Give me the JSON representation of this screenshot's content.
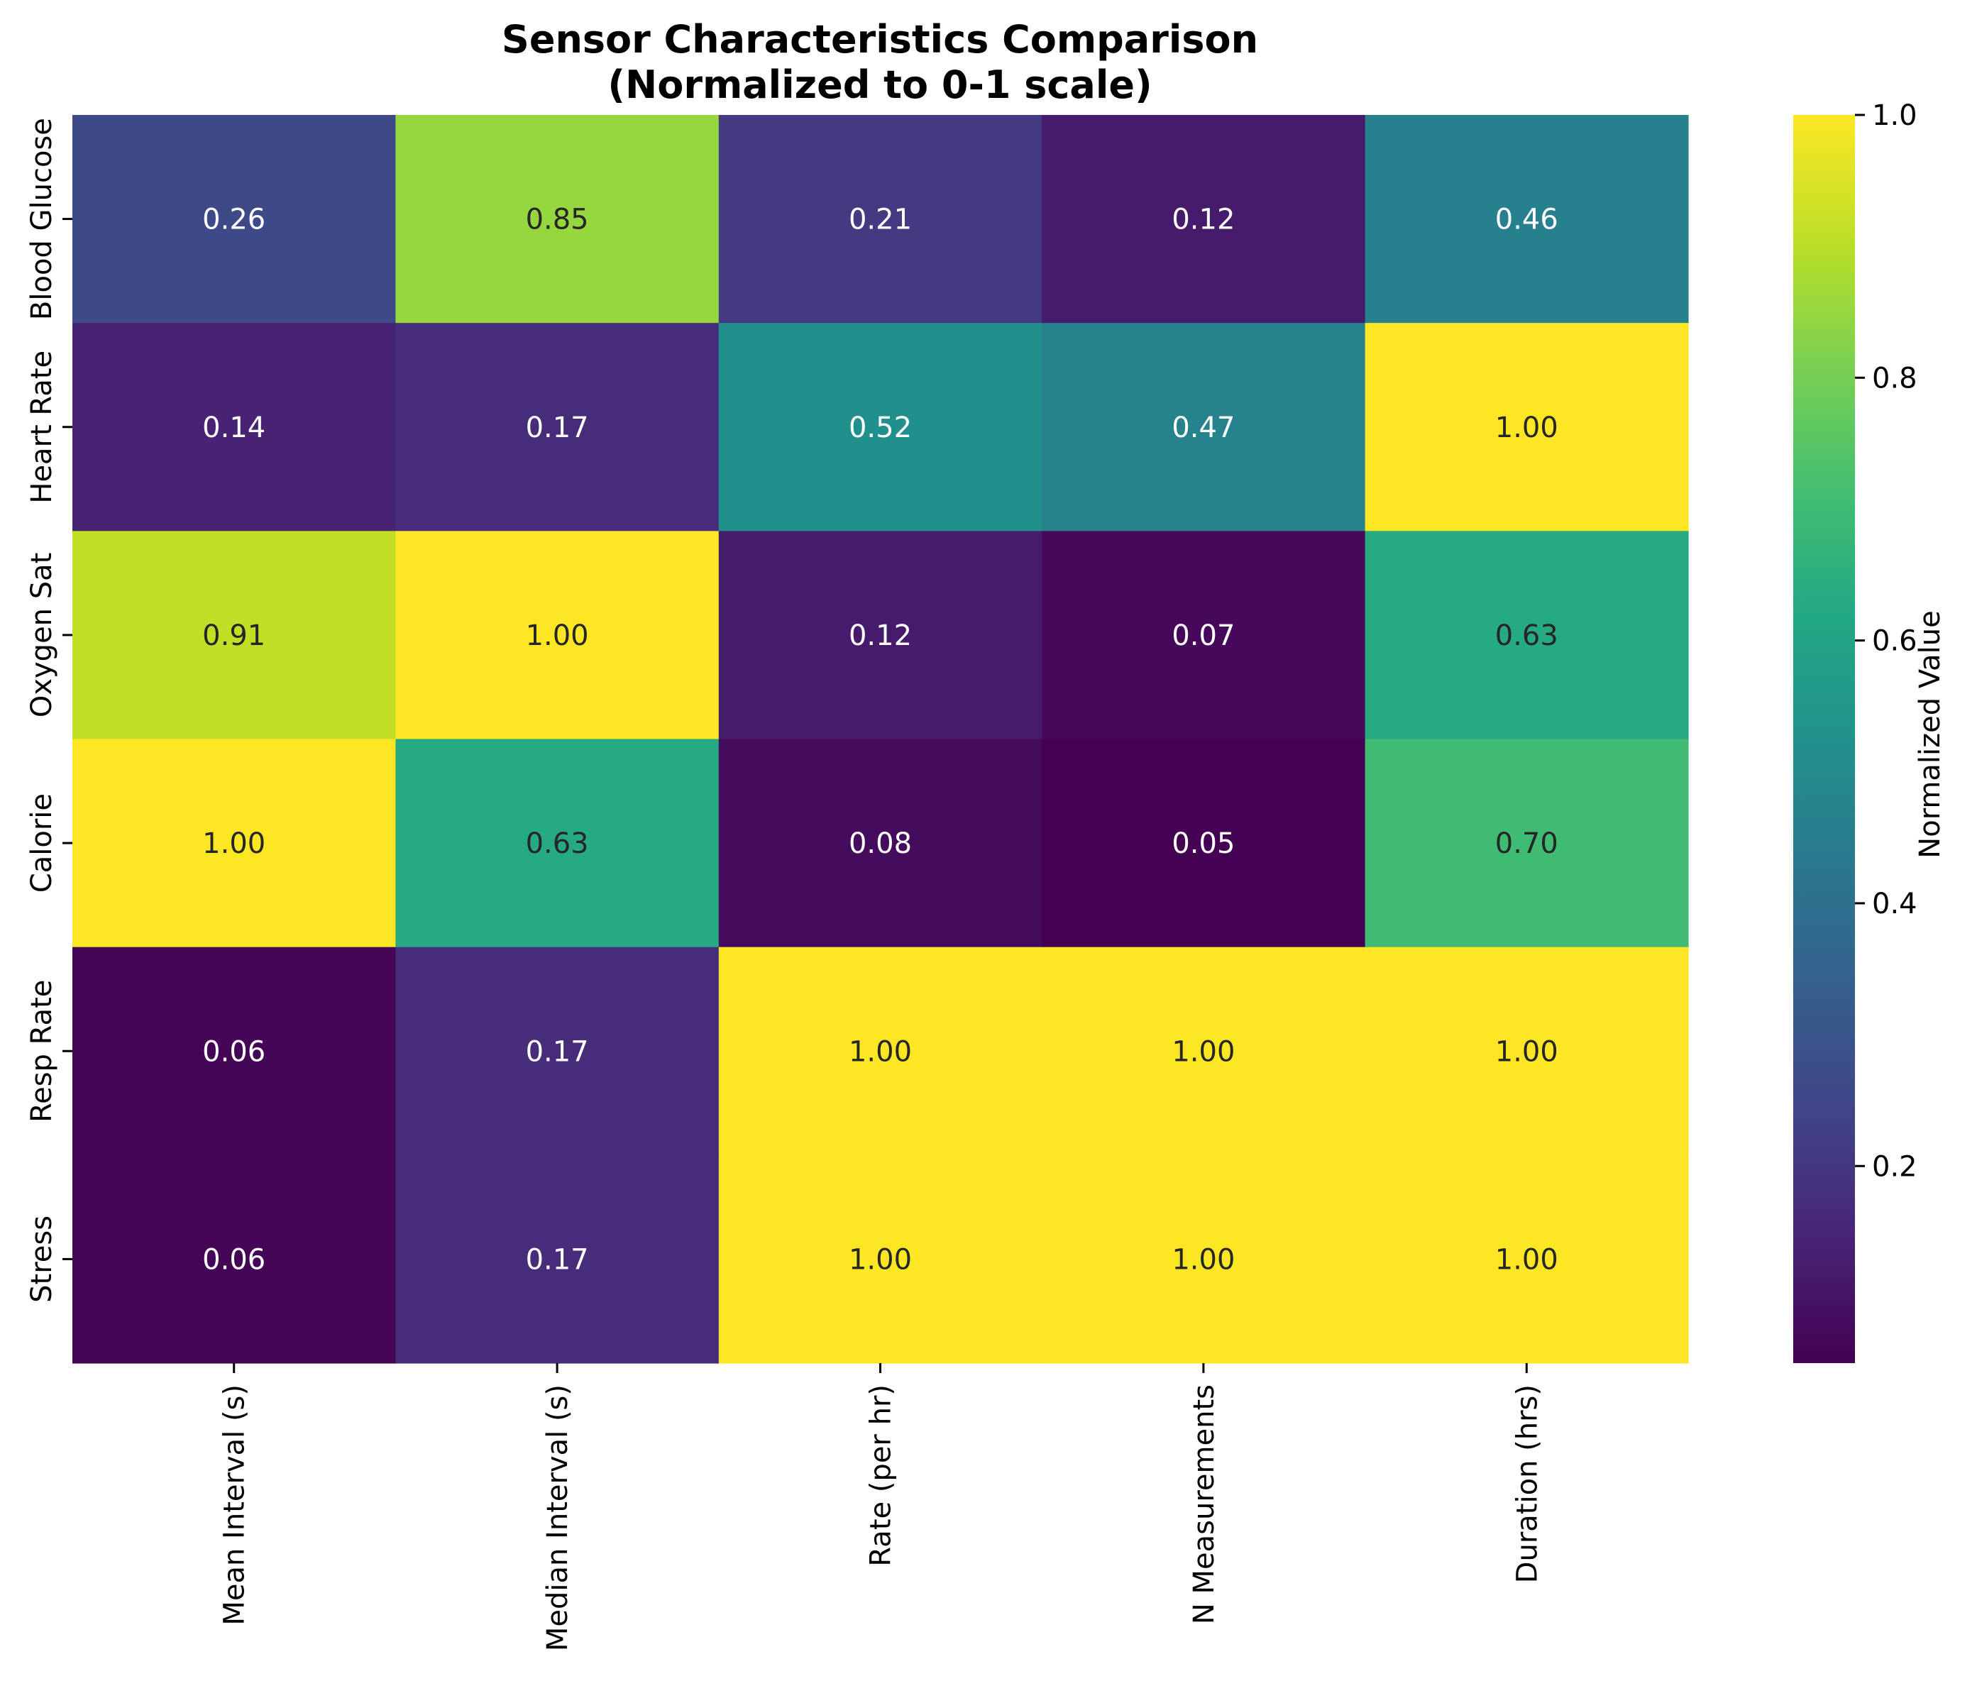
{
  "chart_data": {
    "type": "heatmap",
    "title": "Sensor Characteristics Comparison",
    "subtitle": "(Normalized to 0-1 scale)",
    "xlabel": "",
    "ylabel": "",
    "columns": [
      "Mean Interval (s)",
      "Median Interval (s)",
      "Rate (per hr)",
      "N Measurements",
      "Duration (hrs)"
    ],
    "rows": [
      "Blood Glucose",
      "Heart Rate",
      "Oxygen Sat",
      "Calorie",
      "Resp Rate",
      "Stress"
    ],
    "values": [
      [
        0.26,
        0.85,
        0.21,
        0.12,
        0.46
      ],
      [
        0.14,
        0.17,
        0.52,
        0.47,
        1.0
      ],
      [
        0.91,
        1.0,
        0.12,
        0.07,
        0.63
      ],
      [
        1.0,
        0.63,
        0.08,
        0.05,
        0.7
      ],
      [
        0.06,
        0.17,
        1.0,
        1.0,
        1.0
      ],
      [
        0.06,
        0.17,
        1.0,
        1.0,
        1.0
      ]
    ],
    "value_format": "0.00",
    "colormap": "viridis",
    "colorbar": {
      "label": "Normalized Value",
      "range": [
        0.05,
        1.0
      ],
      "ticks": [
        0.2,
        0.4,
        0.6,
        0.8,
        1.0
      ],
      "tick_labels": [
        "0.2",
        "0.4",
        "0.6",
        "0.8",
        "1.0"
      ]
    },
    "annotation_colors": {
      "on_dark": "#ffffff",
      "on_light": "#262626"
    }
  }
}
